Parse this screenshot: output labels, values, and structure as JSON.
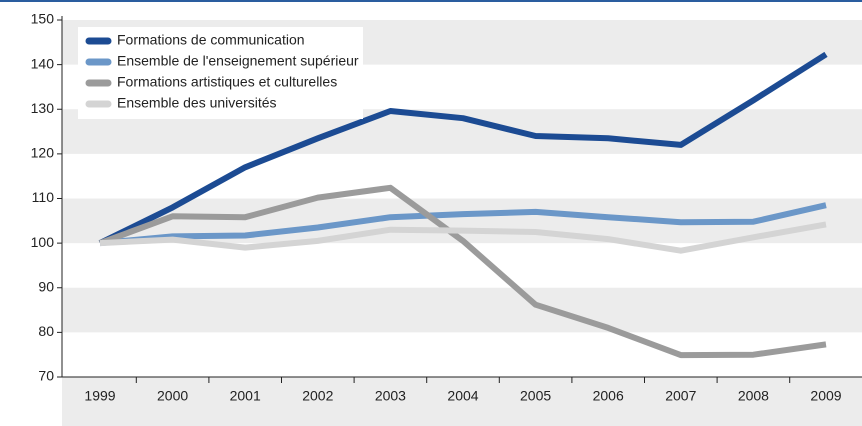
{
  "chart_data": {
    "type": "line",
    "categories": [
      "1999",
      "2000",
      "2001",
      "2002",
      "2003",
      "2004",
      "2005",
      "2006",
      "2007",
      "2008",
      "2009"
    ],
    "series": [
      {
        "name": "Formations de communication",
        "color": "#1c4b93",
        "values": [
          100,
          108,
          117,
          123.5,
          129.6,
          128,
          124,
          123.5,
          122,
          132,
          142.3
        ]
      },
      {
        "name": "Ensemble de l'enseignement supérieur",
        "color": "#6b97c8",
        "values": [
          100,
          101.5,
          101.7,
          103.5,
          105.8,
          106.5,
          107,
          105.8,
          104.7,
          104.8,
          108.5
        ]
      },
      {
        "name": "Formations artistiques et culturelles",
        "color": "#9b9b9b",
        "values": [
          100,
          106,
          105.8,
          110.2,
          112.4,
          100.5,
          86.2,
          81,
          74.9,
          75,
          77.3
        ]
      },
      {
        "name": "Ensemble des universités",
        "color": "#d4d4d4",
        "values": [
          100,
          100.8,
          99,
          100.5,
          103,
          102.8,
          102.5,
          100.9,
          98.3,
          101.3,
          104.2
        ]
      }
    ],
    "ylim": [
      70,
      150
    ],
    "yticks": [
      70,
      80,
      90,
      100,
      110,
      120,
      130,
      140,
      150
    ],
    "grid": true,
    "legend": "top-left"
  }
}
